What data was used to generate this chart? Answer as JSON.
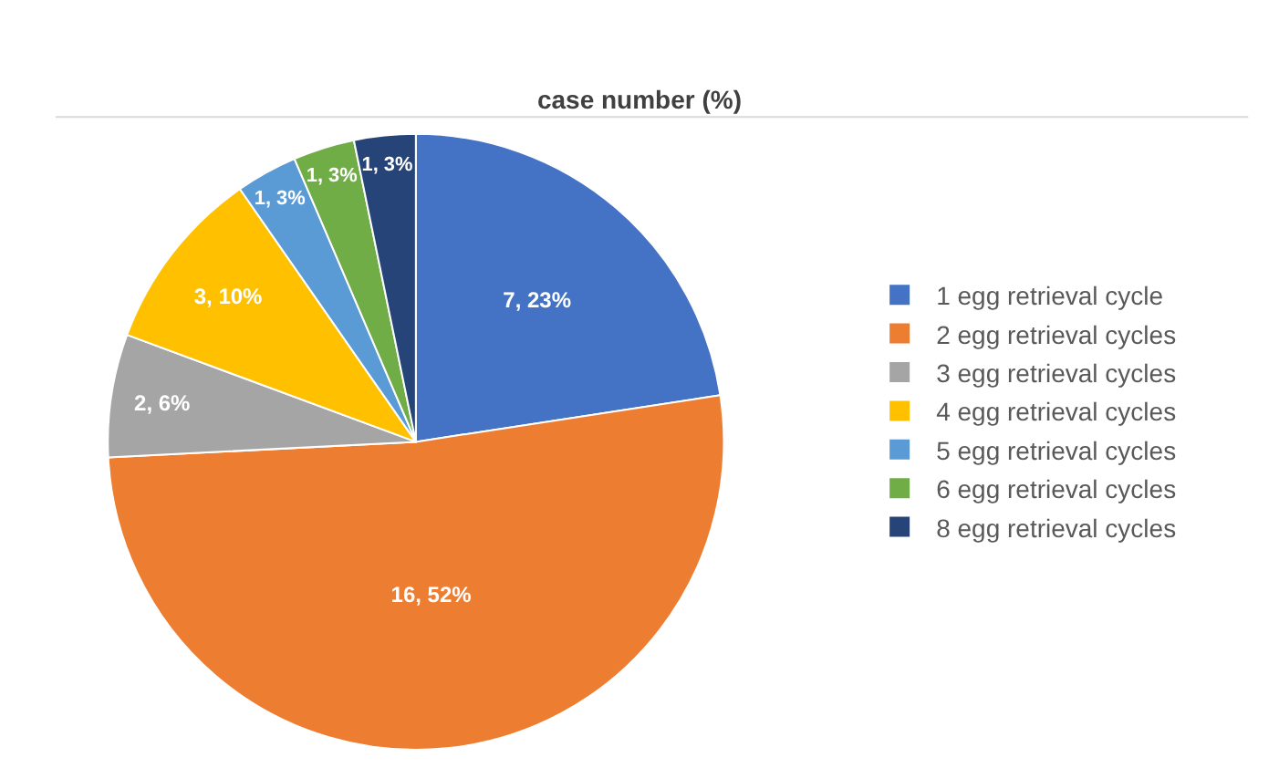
{
  "chart_data": {
    "type": "pie",
    "title": "case number (%)",
    "categories": [
      "1 egg retrieval cycle",
      "2 egg retrieval cycles",
      "3 egg retrieval cycles",
      "4 egg retrieval cycles",
      "5 egg retrieval cycles",
      "6 egg retrieval cycles",
      "8 egg retrieval cycles"
    ],
    "values": [
      7,
      16,
      2,
      3,
      1,
      1,
      1
    ],
    "value_labels": [
      "7, 23%",
      "16, 52%",
      "2, 6%",
      "3, 10%",
      "1, 3%",
      "1, 3%",
      "1, 3%"
    ],
    "colors": [
      "#4472c4",
      "#ed7d31",
      "#a5a5a5",
      "#ffc000",
      "#5b9bd5",
      "#70ad47",
      "#264478"
    ],
    "legend": "right"
  }
}
